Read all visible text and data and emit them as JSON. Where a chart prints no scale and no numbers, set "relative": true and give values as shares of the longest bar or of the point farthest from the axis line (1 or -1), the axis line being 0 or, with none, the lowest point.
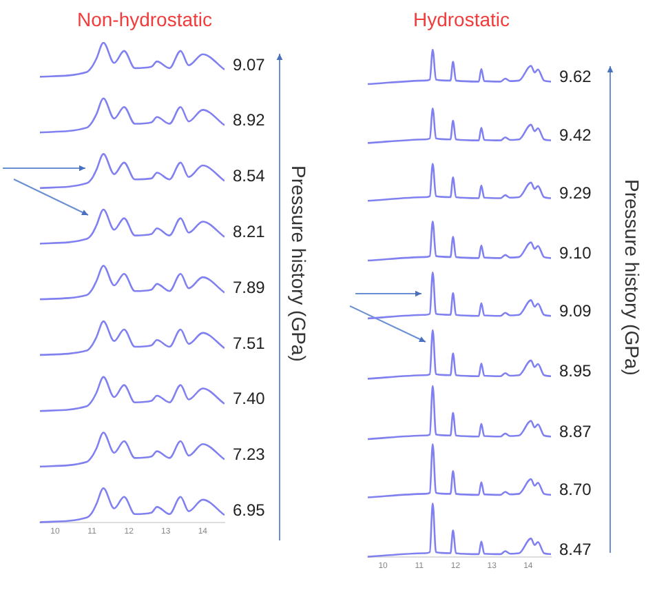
{
  "chart_data": [
    {
      "type": "line",
      "title": "Non-hydrostatic",
      "ylabel": "Pressure history (GPa)",
      "relative": true,
      "x": [
        9.59,
        10.86,
        11.0,
        11.12,
        11.31,
        11.6,
        11.87,
        12.16,
        12.61,
        12.76,
        13.1,
        13.4,
        13.62,
        14.0,
        14.59
      ],
      "xlim": [
        9.59,
        14.59
      ],
      "xticks": [
        10,
        11,
        12,
        13,
        14
      ],
      "grid": false,
      "series": [
        {
          "name": "9.07",
          "color": "#8080f0",
          "values": [
            0.929,
            0.939,
            0.95,
            0.967,
            1.0,
            0.958,
            0.983,
            0.947,
            0.95,
            0.961,
            0.947,
            0.983,
            0.953,
            0.976,
            0.944
          ]
        },
        {
          "name": "8.92",
          "color": "#8080f0",
          "values": [
            0.813,
            0.823,
            0.834,
            0.851,
            0.884,
            0.842,
            0.866,
            0.831,
            0.834,
            0.845,
            0.831,
            0.866,
            0.836,
            0.86,
            0.828
          ]
        },
        {
          "name": "8.54",
          "color": "#8080f0",
          "values": [
            0.697,
            0.707,
            0.717,
            0.735,
            0.768,
            0.726,
            0.75,
            0.715,
            0.717,
            0.729,
            0.715,
            0.75,
            0.72,
            0.744,
            0.712
          ]
        },
        {
          "name": "8.21",
          "color": "#8080f0",
          "values": [
            0.581,
            0.591,
            0.601,
            0.619,
            0.652,
            0.61,
            0.634,
            0.598,
            0.601,
            0.613,
            0.598,
            0.634,
            0.604,
            0.627,
            0.595
          ]
        },
        {
          "name": "7.89",
          "color": "#8080f0",
          "values": [
            0.465,
            0.474,
            0.485,
            0.503,
            0.535,
            0.494,
            0.518,
            0.482,
            0.485,
            0.497,
            0.482,
            0.518,
            0.488,
            0.511,
            0.479
          ]
        },
        {
          "name": "7.51",
          "color": "#8080f0",
          "values": [
            0.349,
            0.358,
            0.369,
            0.386,
            0.419,
            0.378,
            0.402,
            0.366,
            0.369,
            0.38,
            0.366,
            0.402,
            0.372,
            0.395,
            0.363
          ]
        },
        {
          "name": "7.40",
          "color": "#8080f0",
          "values": [
            0.232,
            0.242,
            0.253,
            0.27,
            0.303,
            0.261,
            0.286,
            0.25,
            0.253,
            0.264,
            0.25,
            0.286,
            0.256,
            0.279,
            0.247
          ]
        },
        {
          "name": "7.23",
          "color": "#8080f0",
          "values": [
            0.116,
            0.126,
            0.137,
            0.154,
            0.187,
            0.145,
            0.169,
            0.134,
            0.137,
            0.148,
            0.134,
            0.169,
            0.139,
            0.163,
            0.131
          ]
        },
        {
          "name": "6.95",
          "color": "#8080f0",
          "values": [
            0,
            0.01,
            0.02,
            0.038,
            0.071,
            0.029,
            0.053,
            0.017,
            0.02,
            0.032,
            0.017,
            0.053,
            0.023,
            0.047,
            0.015
          ]
        }
      ]
    },
    {
      "type": "line",
      "title": "Hydrostatic",
      "ylabel": "Pressure history (GPa)",
      "relative": true,
      "x": [
        9.58,
        11.16,
        11.29,
        11.37,
        11.46,
        11.86,
        11.93,
        12.01,
        12.64,
        12.71,
        12.79,
        13.24,
        13.37,
        13.5,
        13.75,
        14.08,
        14.18,
        14.27,
        14.44,
        14.63
      ],
      "xlim": [
        9.58,
        14.63
      ],
      "xticks": [
        10,
        11,
        12,
        13,
        14
      ],
      "grid": false,
      "series": [
        {
          "name": "9.62",
          "color": "#8080f0",
          "values": [
            0.932,
            0.939,
            0.941,
            1.0,
            0.941,
            0.939,
            0.976,
            0.939,
            0.937,
            0.962,
            0.938,
            0.937,
            0.943,
            0.938,
            0.939,
            0.968,
            0.955,
            0.961,
            0.939,
            0.937
          ]
        },
        {
          "name": "9.42",
          "color": "#8080f0",
          "values": [
            0.816,
            0.823,
            0.825,
            0.884,
            0.825,
            0.823,
            0.86,
            0.823,
            0.821,
            0.846,
            0.822,
            0.821,
            0.827,
            0.822,
            0.823,
            0.852,
            0.839,
            0.845,
            0.823,
            0.821
          ]
        },
        {
          "name": "9.29",
          "color": "#8080f0",
          "values": [
            0.702,
            0.709,
            0.711,
            0.775,
            0.711,
            0.709,
            0.748,
            0.709,
            0.707,
            0.732,
            0.708,
            0.707,
            0.713,
            0.708,
            0.709,
            0.738,
            0.725,
            0.731,
            0.709,
            0.707
          ]
        },
        {
          "name": "9.10",
          "color": "#8080f0",
          "values": [
            0.584,
            0.591,
            0.593,
            0.661,
            0.593,
            0.591,
            0.631,
            0.591,
            0.589,
            0.614,
            0.59,
            0.589,
            0.595,
            0.59,
            0.591,
            0.62,
            0.607,
            0.613,
            0.591,
            0.589
          ]
        },
        {
          "name": "9.09",
          "color": "#8080f0",
          "values": [
            0.47,
            0.477,
            0.479,
            0.561,
            0.479,
            0.477,
            0.52,
            0.477,
            0.475,
            0.5,
            0.476,
            0.475,
            0.481,
            0.476,
            0.477,
            0.506,
            0.493,
            0.499,
            0.477,
            0.475
          ]
        },
        {
          "name": "8.95",
          "color": "#8080f0",
          "values": [
            0.351,
            0.358,
            0.36,
            0.447,
            0.36,
            0.358,
            0.401,
            0.358,
            0.356,
            0.381,
            0.357,
            0.356,
            0.362,
            0.357,
            0.358,
            0.387,
            0.374,
            0.38,
            0.358,
            0.356
          ]
        },
        {
          "name": "8.87",
          "color": "#8080f0",
          "values": [
            0.232,
            0.239,
            0.241,
            0.337,
            0.241,
            0.239,
            0.284,
            0.239,
            0.237,
            0.262,
            0.238,
            0.237,
            0.243,
            0.238,
            0.239,
            0.268,
            0.255,
            0.261,
            0.239,
            0.237
          ]
        },
        {
          "name": "8.70",
          "color": "#8080f0",
          "values": [
            0.117,
            0.124,
            0.126,
            0.222,
            0.126,
            0.124,
            0.169,
            0.124,
            0.122,
            0.147,
            0.123,
            0.122,
            0.128,
            0.123,
            0.124,
            0.153,
            0.14,
            0.146,
            0.124,
            0.122
          ]
        },
        {
          "name": "8.47",
          "color": "#8080f0",
          "values": [
            0,
            0.007,
            0.009,
            0.105,
            0.009,
            0.007,
            0.052,
            0.007,
            0.005,
            0.03,
            0.006,
            0.005,
            0.011,
            0.006,
            0.007,
            0.036,
            0.023,
            0.029,
            0.007,
            0.005
          ]
        }
      ]
    }
  ]
}
